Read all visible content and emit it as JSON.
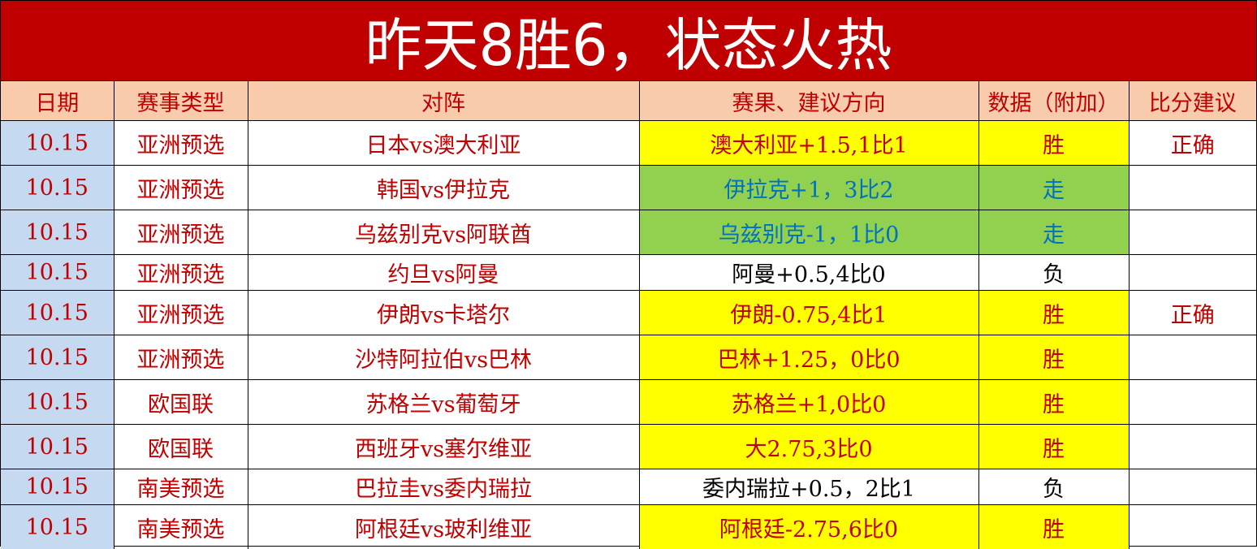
{
  "title": "昨天8胜6，状态火热",
  "headers": [
    "日期",
    "赛事类型",
    "对阵",
    "赛果、建议方向",
    "数据（附加）",
    "比分建议"
  ],
  "colors": {
    "title_bg": "#c00000",
    "header_bg": "#f8cbad",
    "date_bg": "#c5d9f1",
    "win_bg": "#ffff00",
    "push_bg": "#92d050",
    "push_text": "#0070c0",
    "text_red": "#c00000"
  },
  "rows": [
    {
      "date": "10.15",
      "league": "亚洲预选",
      "match": "日本vs澳大利亚",
      "pick": "澳大利亚+1.5,1比1",
      "result": "胜",
      "score": "正确",
      "status": "win"
    },
    {
      "date": "10.15",
      "league": "亚洲预选",
      "match": "韩国vs伊拉克",
      "pick": "伊拉克+1，3比2",
      "result": "走",
      "score": "",
      "status": "push"
    },
    {
      "date": "10.15",
      "league": "亚洲预选",
      "match": "乌兹别克vs阿联酋",
      "pick": "乌兹别克-1，1比0",
      "result": "走",
      "score": "",
      "status": "push"
    },
    {
      "date": "10.15",
      "league": "亚洲预选",
      "match": "约旦vs阿曼",
      "pick": "阿曼+0.5,4比0",
      "result": "负",
      "score": "",
      "status": "loss"
    },
    {
      "date": "10.15",
      "league": "亚洲预选",
      "match": "伊朗vs卡塔尔",
      "pick": "伊朗-0.75,4比1",
      "result": "胜",
      "score": "正确",
      "status": "win"
    },
    {
      "date": "10.15",
      "league": "亚洲预选",
      "match": "沙特阿拉伯vs巴林",
      "pick": "巴林+1.25，0比0",
      "result": "胜",
      "score": "",
      "status": "win"
    },
    {
      "date": "10.15",
      "league": "欧国联",
      "match": "苏格兰vs葡萄牙",
      "pick": "苏格兰+1,0比0",
      "result": "胜",
      "score": "",
      "status": "win"
    },
    {
      "date": "10.15",
      "league": "欧国联",
      "match": "西班牙vs塞尔维亚",
      "pick": "大2.75,3比0",
      "result": "胜",
      "score": "",
      "status": "win"
    },
    {
      "date": "10.15",
      "league": "南美预选",
      "match": "巴拉圭vs委内瑞拉",
      "pick": "委内瑞拉+0.5，2比1",
      "result": "负",
      "score": "",
      "status": "loss"
    },
    {
      "date": "10.15",
      "league": "南美预选",
      "match": "阿根廷vs玻利维亚",
      "pick": "阿根廷-2.75,6比0",
      "result": "胜",
      "score": "",
      "status": "win"
    }
  ]
}
